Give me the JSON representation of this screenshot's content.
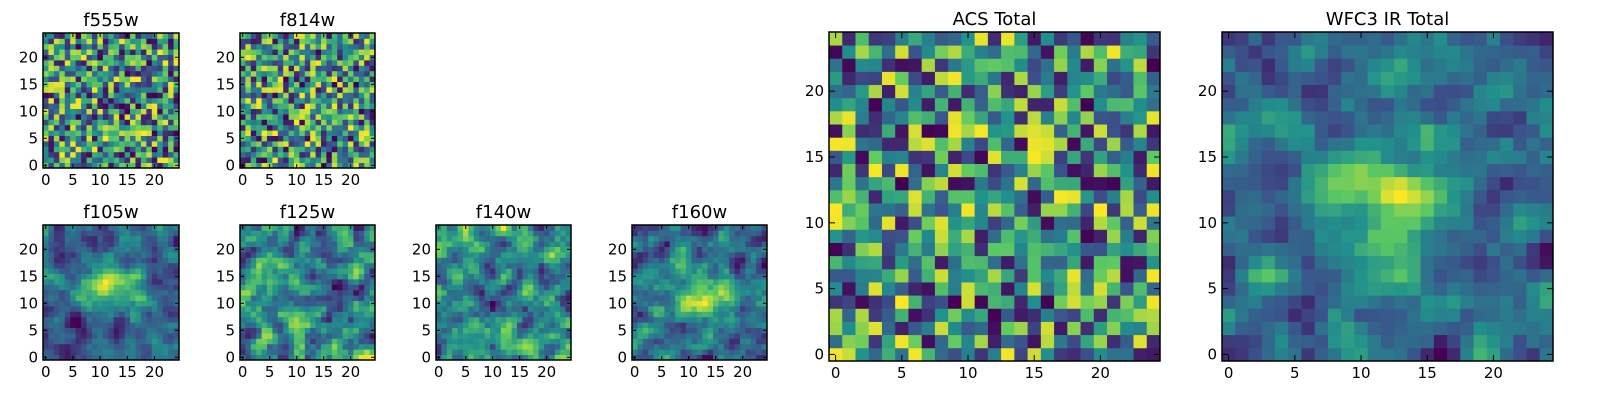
{
  "chart_data": [
    {
      "type": "heatmap",
      "title": "f555w",
      "grid_size": 25,
      "pattern": "noise",
      "colormap": "viridis",
      "xlim": [
        -0.5,
        24.5
      ],
      "ylim": [
        -0.5,
        24.5
      ],
      "xticks": [
        0,
        5,
        10,
        15,
        20
      ],
      "yticks": [
        0,
        5,
        10,
        15,
        20
      ]
    },
    {
      "type": "heatmap",
      "title": "f814w",
      "grid_size": 25,
      "pattern": "noise",
      "colormap": "viridis",
      "xlim": [
        -0.5,
        24.5
      ],
      "ylim": [
        -0.5,
        24.5
      ],
      "xticks": [
        0,
        5,
        10,
        15,
        20
      ],
      "yticks": [
        0,
        5,
        10,
        15,
        20
      ]
    },
    {
      "type": "heatmap",
      "title": "f105w",
      "grid_size": 25,
      "pattern": "smooth-peak",
      "peak": [
        12,
        13
      ],
      "colormap": "viridis",
      "xlim": [
        -0.5,
        24.5
      ],
      "ylim": [
        -0.5,
        24.5
      ],
      "xticks": [
        0,
        5,
        10,
        15,
        20
      ],
      "yticks": [
        0,
        5,
        10,
        15,
        20
      ]
    },
    {
      "type": "heatmap",
      "title": "f125w",
      "grid_size": 25,
      "pattern": "smooth",
      "colormap": "viridis",
      "xlim": [
        -0.5,
        24.5
      ],
      "ylim": [
        -0.5,
        24.5
      ],
      "xticks": [
        0,
        5,
        10,
        15,
        20
      ],
      "yticks": [
        0,
        5,
        10,
        15,
        20
      ]
    },
    {
      "type": "heatmap",
      "title": "f140w",
      "grid_size": 25,
      "pattern": "smooth",
      "colormap": "viridis",
      "xlim": [
        -0.5,
        24.5
      ],
      "ylim": [
        -0.5,
        24.5
      ],
      "xticks": [
        0,
        5,
        10,
        15,
        20
      ],
      "yticks": [
        0,
        5,
        10,
        15,
        20
      ]
    },
    {
      "type": "heatmap",
      "title": "f160w",
      "grid_size": 25,
      "pattern": "smooth-peak",
      "peak": [
        12,
        12
      ],
      "colormap": "viridis",
      "xlim": [
        -0.5,
        24.5
      ],
      "ylim": [
        -0.5,
        24.5
      ],
      "xticks": [
        0,
        5,
        10,
        15,
        20
      ],
      "yticks": [
        0,
        5,
        10,
        15,
        20
      ]
    },
    {
      "type": "heatmap",
      "title": "ACS Total",
      "grid_size": 25,
      "pattern": "noise",
      "colormap": "viridis",
      "xlim": [
        -0.5,
        24.5
      ],
      "ylim": [
        -0.5,
        24.5
      ],
      "xticks": [
        0,
        5,
        10,
        15,
        20
      ],
      "yticks": [
        0,
        5,
        10,
        15,
        20
      ]
    },
    {
      "type": "heatmap",
      "title": "WFC3 IR Total",
      "grid_size": 25,
      "pattern": "smooth-peak",
      "peak": [
        12,
        12
      ],
      "colormap": "viridis",
      "xlim": [
        -0.5,
        24.5
      ],
      "ylim": [
        -0.5,
        24.5
      ],
      "xticks": [
        0,
        5,
        10,
        15,
        20
      ],
      "yticks": [
        0,
        5,
        10,
        15,
        20
      ]
    }
  ],
  "colors": {
    "viridis": [
      "#440154",
      "#3b528b",
      "#21918c",
      "#5ec962",
      "#fde725"
    ]
  }
}
